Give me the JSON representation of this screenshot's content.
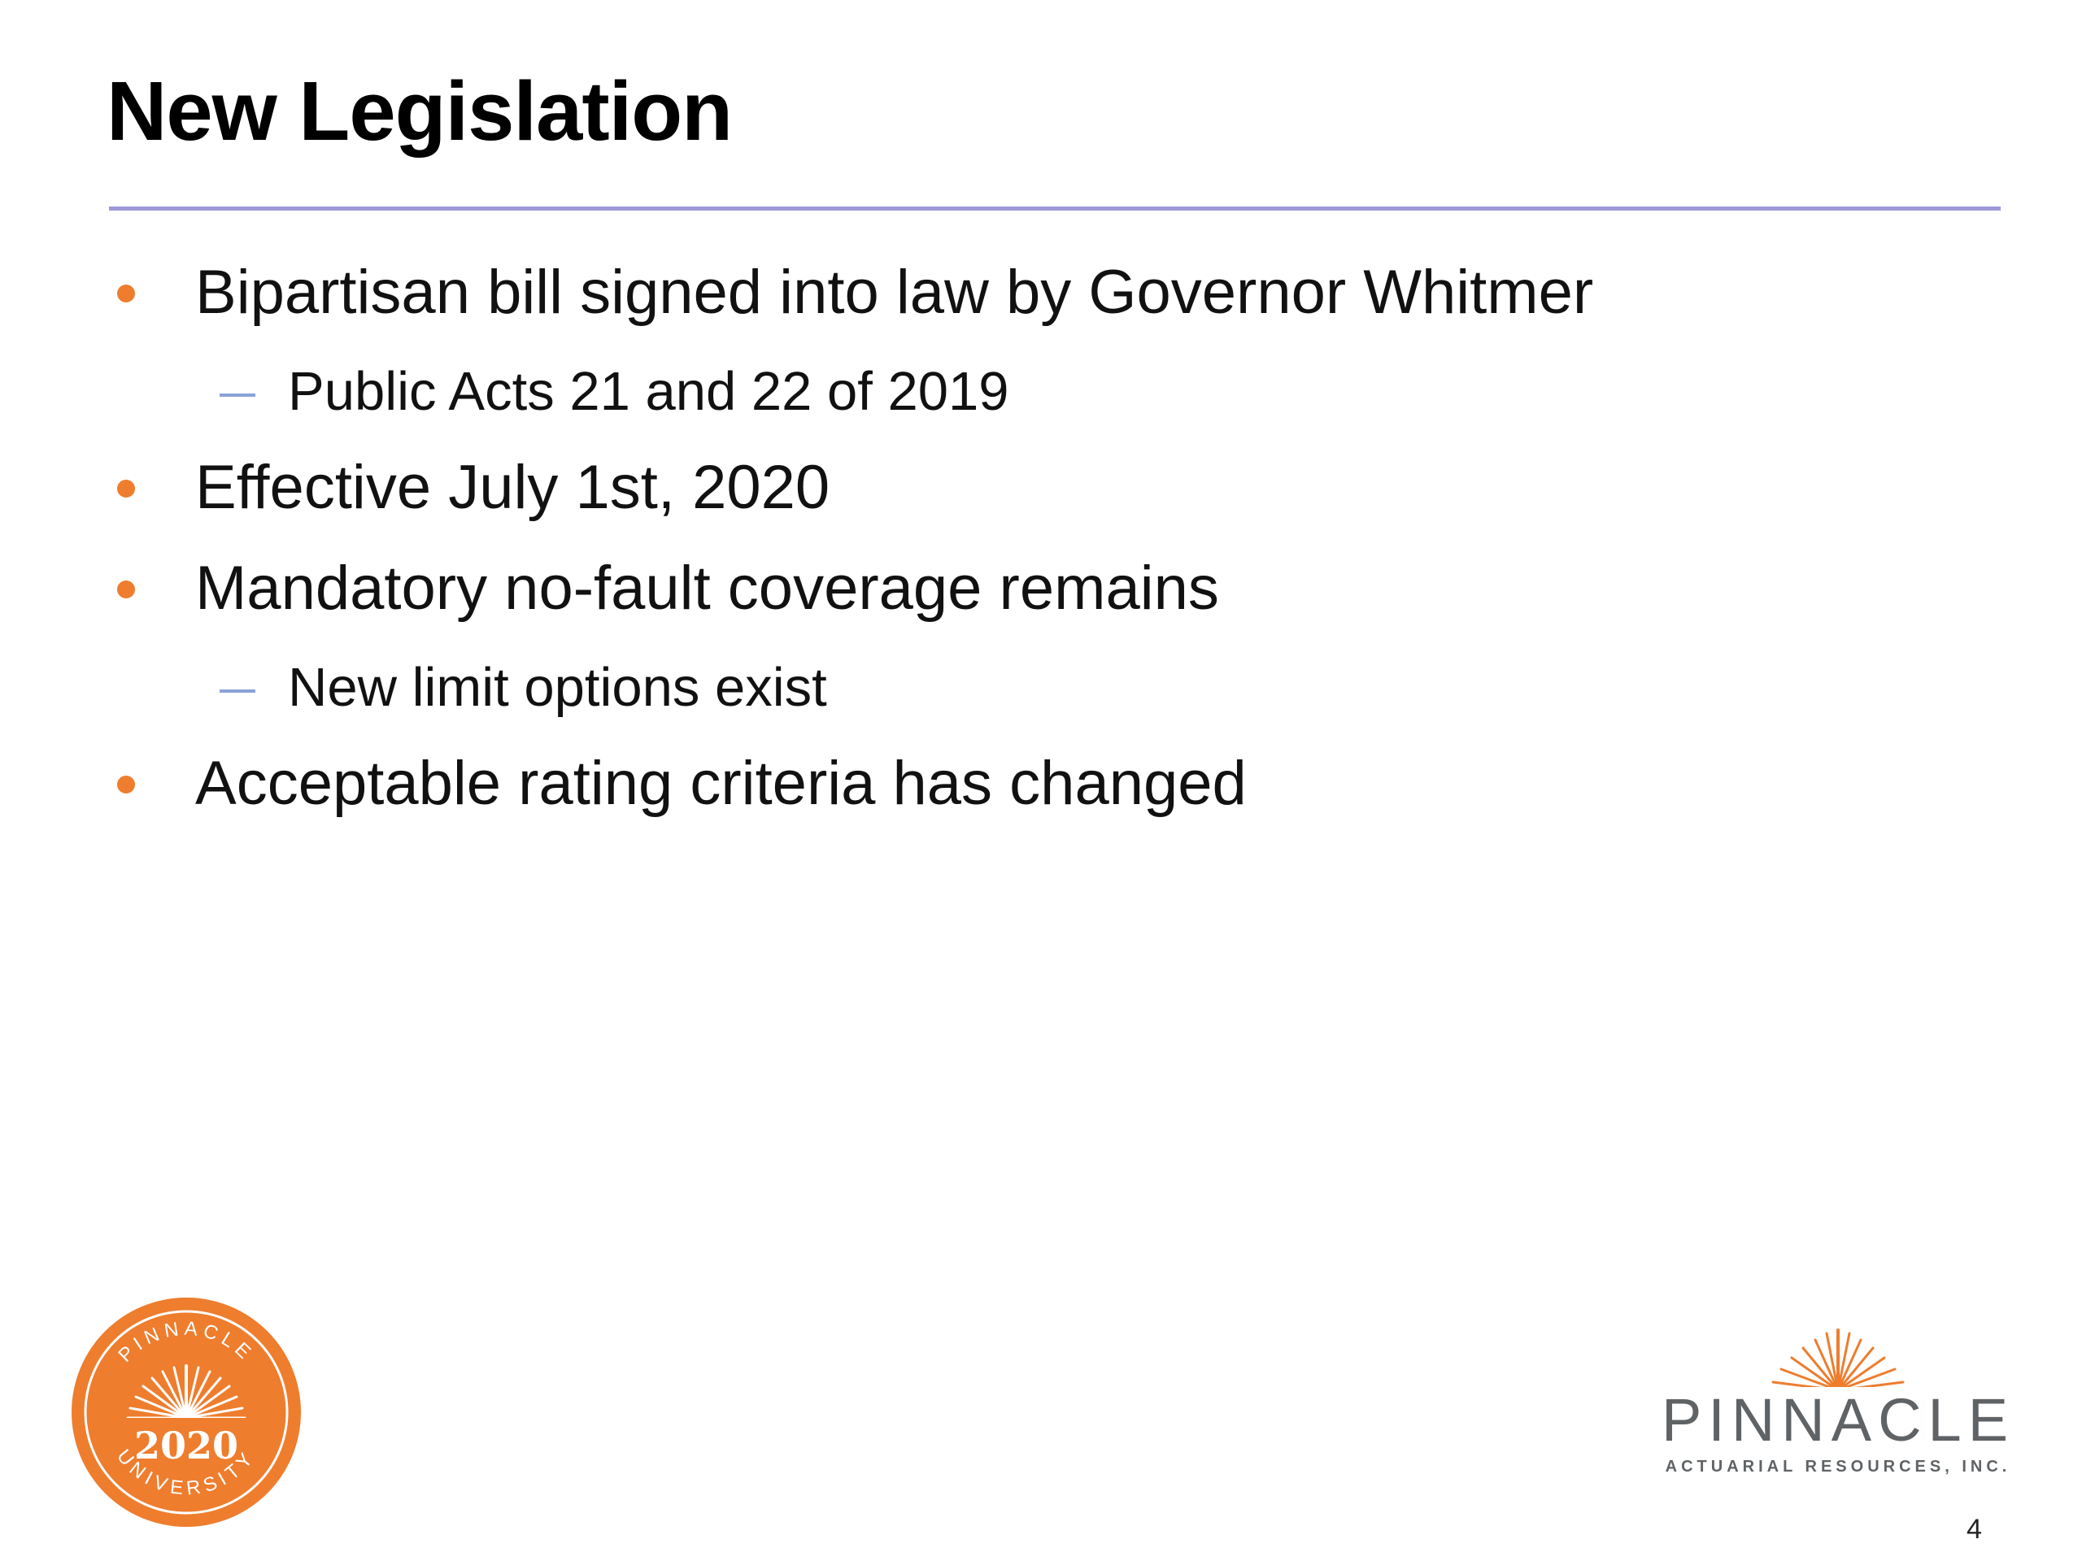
{
  "slide": {
    "title": "New Legislation",
    "bullets": [
      "Bipartisan bill signed into law by Governor Whitmer",
      "Effective July 1st, 2020",
      "Mandatory no-fault coverage remains",
      "Acceptable rating criteria has changed"
    ],
    "sub_bullets": [
      "Public Acts 21 and 22 of 2019",
      "New limit options exist"
    ],
    "page_number": "4"
  },
  "footer": {
    "seal": {
      "top_text": "PINNACLE",
      "year": "2020",
      "bottom_text": "UNIVERSITY"
    },
    "logo": {
      "name": "PINNACLE",
      "tagline": "ACTUARIAL RESOURCES, INC."
    }
  },
  "colors": {
    "accent_orange": "#ee7d2e",
    "title_rule": "#9d98d8",
    "sub_dash": "#8aa3d6",
    "logo_gray": "#5f6366"
  }
}
